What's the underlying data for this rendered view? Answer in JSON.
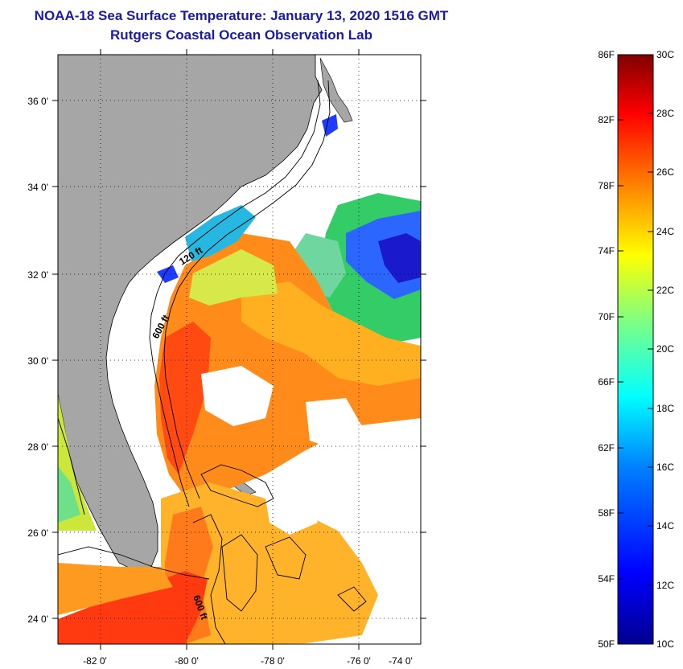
{
  "title": {
    "line1": "NOAA-18 Sea Surface Temperature:  January 13, 2020 1516 GMT",
    "line2": "Rutgers Coastal Ocean Observation Lab"
  },
  "map": {
    "lon_ticks": [
      "-82 0'",
      "-80 0'",
      "-78 0'",
      "-76 0'",
      "-74 0'"
    ],
    "lat_ticks": [
      "36 0'",
      "34 0'",
      "32 0'",
      "30 0'",
      "28 0'",
      "26 0'",
      "24 0'"
    ],
    "isobath_labels": [
      "120 ft",
      "600 ft",
      "600 ft"
    ],
    "colors": {
      "land": "#a6a6a6",
      "no_data": "#ffffff"
    }
  },
  "colorbar": {
    "fahrenheit_labels": [
      "86F",
      "82F",
      "78F",
      "74F",
      "70F",
      "66F",
      "62F",
      "58F",
      "54F",
      "50F"
    ],
    "celsius_labels": [
      "30C",
      "28C",
      "26C",
      "24C",
      "22C",
      "20C",
      "18C",
      "16C",
      "14C",
      "12C",
      "10C"
    ],
    "colors": [
      "#00008f",
      "#0000ff",
      "#0080ff",
      "#00ffff",
      "#80ff80",
      "#ffff00",
      "#ff8000",
      "#ff0000",
      "#800000"
    ]
  }
}
